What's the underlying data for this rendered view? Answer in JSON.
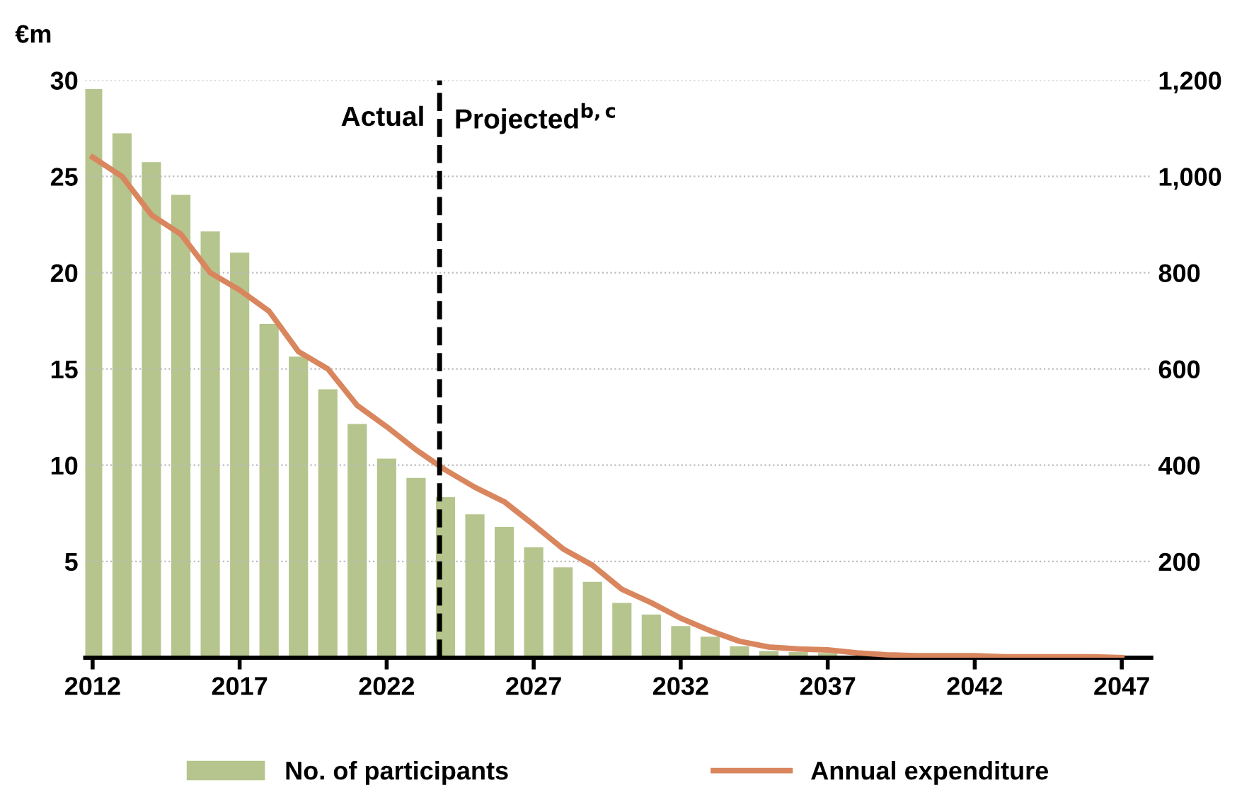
{
  "chart_data": {
    "type": "bar",
    "ylabel": "€m",
    "x": [
      2012,
      2013,
      2014,
      2015,
      2016,
      2017,
      2018,
      2019,
      2020,
      2021,
      2022,
      2023,
      2024,
      2025,
      2026,
      2027,
      2028,
      2029,
      2030,
      2031,
      2032,
      2033,
      2034,
      2035,
      2036,
      2037,
      2038,
      2039,
      2040,
      2041,
      2042,
      2043,
      2044,
      2045,
      2046,
      2047
    ],
    "series": [
      {
        "name": "No. of participants",
        "axis": "y2",
        "color": "#b5c58d",
        "values": [
          1180,
          1088,
          1028,
          960,
          884,
          840,
          692,
          624,
          556,
          484,
          412,
          372,
          332,
          296,
          270,
          228,
          186,
          156,
          112,
          88,
          64,
          42,
          22,
          12,
          10,
          8,
          null,
          2,
          1,
          0,
          0,
          0,
          0,
          0,
          0,
          0
        ]
      },
      {
        "name": "Annual expenditure",
        "type": "line",
        "axis": "y",
        "color": "#d9865e",
        "values": [
          26.0,
          25.0,
          23.0,
          22.0,
          20.0,
          19.1,
          18.0,
          15.9,
          15.0,
          13.1,
          12.0,
          10.8,
          9.75,
          8.85,
          8.1,
          6.9,
          5.65,
          4.8,
          3.55,
          2.85,
          2.05,
          1.4,
          0.85,
          0.55,
          0.45,
          0.4,
          0.25,
          0.15,
          0.1,
          0.1,
          0.1,
          0.05,
          0.05,
          0.05,
          0.05,
          0
        ]
      }
    ],
    "xlim": [
      2011.75,
      2048
    ],
    "xticks": [
      2012,
      2017,
      2022,
      2027,
      2032,
      2037,
      2042,
      2047
    ],
    "ylim": [
      0,
      30
    ],
    "yticks": [
      {
        "value": 0,
        "label": null
      },
      5,
      10,
      15,
      20,
      25,
      30
    ],
    "y2lim": [
      0,
      1200
    ],
    "y2ticks": [
      {
        "value": 0,
        "label": null
      },
      {
        "value": 200,
        "label": "200"
      },
      {
        "value": 400,
        "label": "400"
      },
      {
        "value": 600,
        "label": "600"
      },
      {
        "value": 800,
        "label": "800"
      },
      {
        "value": 1000,
        "label": "1,000"
      },
      {
        "value": 1200,
        "label": "1,200"
      }
    ],
    "ref_lines": [
      {
        "axis": "x",
        "value": 2023.8,
        "color": "#000000",
        "line_style": "dashed"
      }
    ],
    "annotations": [
      {
        "text": "Actual",
        "x": 2023.8,
        "y": 28
      },
      {
        "text": "Projected$^{b,c}$",
        "x": 2023.8,
        "y": 28
      }
    ],
    "grid": "y",
    "legend": "bottom",
    "marker": "none",
    "line_style": "solid"
  }
}
